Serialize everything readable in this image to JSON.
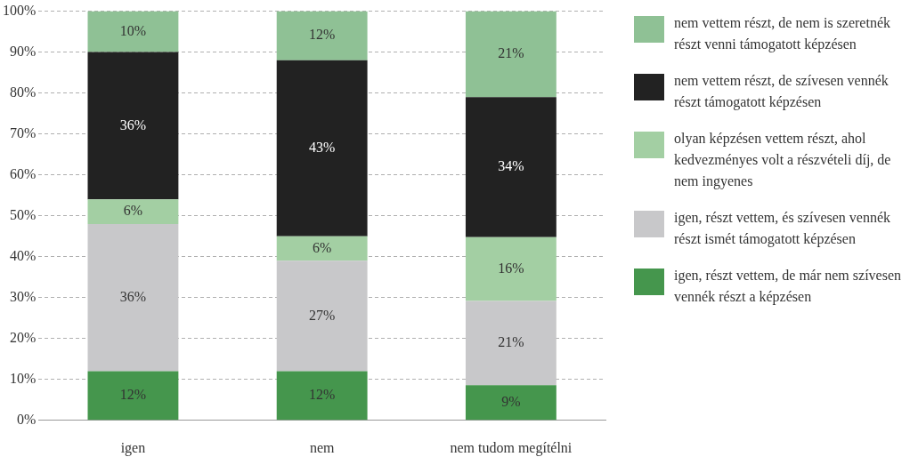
{
  "chart_data": {
    "type": "bar",
    "stacked": true,
    "categories": [
      "igen",
      "nem",
      "nem tudom megítélni"
    ],
    "series": [
      {
        "name": "igen, részt vettem, de már nem szívesen vennék részt a képzésen",
        "color": "#45964d",
        "values": [
          12,
          12,
          8.6
        ],
        "value_labels": [
          "12%",
          "12%",
          "9%"
        ]
      },
      {
        "name": "igen, részt vettem, és szívesen vennék részt ismét támogatott képzésen",
        "color": "#c8c8ca",
        "values": [
          36,
          27,
          20.6
        ],
        "value_labels": [
          "36%",
          "27%",
          "21%"
        ]
      },
      {
        "name": "olyan képzésen vettem részt, ahol kedvezményes volt a részvételi díj, de nem ingyenes",
        "color": "#a3cfa3",
        "values": [
          6,
          6,
          15.6
        ],
        "value_labels": [
          "6%",
          "6%",
          "16%"
        ]
      },
      {
        "name": "nem vettem részt, de szívesen vennék részt támogatott képzésen",
        "color": "#222222",
        "values": [
          36,
          43,
          34.2
        ],
        "value_labels": [
          "36%",
          "43%",
          "34%"
        ]
      },
      {
        "name": "nem vettem részt, de nem is szeretnék részt venni támogatott képzésen",
        "color": "#8fc195",
        "values": [
          10,
          12,
          21
        ],
        "value_labels": [
          "10%",
          "12%",
          "21%"
        ]
      }
    ],
    "ylim": [
      0,
      100
    ],
    "yticks": [
      {
        "value": 0,
        "label": "0%"
      },
      {
        "value": 10,
        "label": "10%"
      },
      {
        "value": 20,
        "label": "20%"
      },
      {
        "value": 30,
        "label": "30%"
      },
      {
        "value": 40,
        "label": "40%"
      },
      {
        "value": 50,
        "label": "50%"
      },
      {
        "value": 60,
        "label": "60%"
      },
      {
        "value": 70,
        "label": "70%"
      },
      {
        "value": 80,
        "label": "80%"
      },
      {
        "value": 90,
        "label": "90%"
      },
      {
        "value": 100,
        "label": "100%"
      }
    ],
    "grid": "y",
    "line_style": "dashed",
    "legend": "right"
  }
}
